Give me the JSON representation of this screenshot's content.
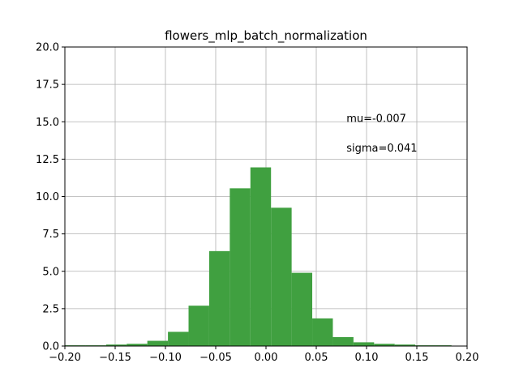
{
  "chart_data": {
    "type": "bar",
    "title": "flowers_mlp_batch_normalization",
    "xlabel": "",
    "ylabel": "",
    "xlim": [
      -0.2,
      0.2
    ],
    "ylim": [
      0,
      20
    ],
    "grid": true,
    "bar_color": "#40a040",
    "x_ticks": [
      -0.2,
      -0.15,
      -0.1,
      -0.05,
      0.0,
      0.05,
      0.1,
      0.15,
      0.2
    ],
    "x_tick_labels": [
      "−0.20",
      "−0.15",
      "−0.10",
      "−0.05",
      "0.00",
      "0.05",
      "0.10",
      "0.15",
      "0.20"
    ],
    "y_ticks": [
      0,
      2.5,
      5,
      7.5,
      10,
      12.5,
      15,
      17.5,
      20
    ],
    "y_tick_labels": [
      "0.0",
      "2.5",
      "5.0",
      "7.5",
      "10.0",
      "12.5",
      "15.0",
      "17.5",
      "20.0"
    ],
    "bins": [
      {
        "x0": -0.2,
        "x1": -0.1795,
        "value": 0.05
      },
      {
        "x0": -0.1795,
        "x1": -0.159,
        "value": 0.05
      },
      {
        "x0": -0.159,
        "x1": -0.1385,
        "value": 0.1
      },
      {
        "x0": -0.1385,
        "x1": -0.118,
        "value": 0.15
      },
      {
        "x0": -0.118,
        "x1": -0.0975,
        "value": 0.35
      },
      {
        "x0": -0.0975,
        "x1": -0.077,
        "value": 0.95
      },
      {
        "x0": -0.077,
        "x1": -0.0565,
        "value": 2.7
      },
      {
        "x0": -0.0565,
        "x1": -0.036,
        "value": 6.35
      },
      {
        "x0": -0.036,
        "x1": -0.0155,
        "value": 10.55
      },
      {
        "x0": -0.0155,
        "x1": 0.005,
        "value": 11.95
      },
      {
        "x0": 0.005,
        "x1": 0.0255,
        "value": 9.25
      },
      {
        "x0": 0.0255,
        "x1": 0.046,
        "value": 4.9
      },
      {
        "x0": 0.046,
        "x1": 0.0665,
        "value": 1.85
      },
      {
        "x0": 0.0665,
        "x1": 0.087,
        "value": 0.6
      },
      {
        "x0": 0.087,
        "x1": 0.1075,
        "value": 0.25
      },
      {
        "x0": 0.1075,
        "x1": 0.128,
        "value": 0.15
      },
      {
        "x0": 0.128,
        "x1": 0.1485,
        "value": 0.1
      },
      {
        "x0": 0.1485,
        "x1": 0.169,
        "value": 0.05
      },
      {
        "x0": 0.169,
        "x1": 0.1845,
        "value": 0.05
      }
    ],
    "annotations": [
      {
        "text": "mu=-0.007",
        "x": 0.08,
        "y": 15.0
      },
      {
        "text": "sigma=0.041",
        "x": 0.08,
        "y": 13.0
      }
    ]
  }
}
